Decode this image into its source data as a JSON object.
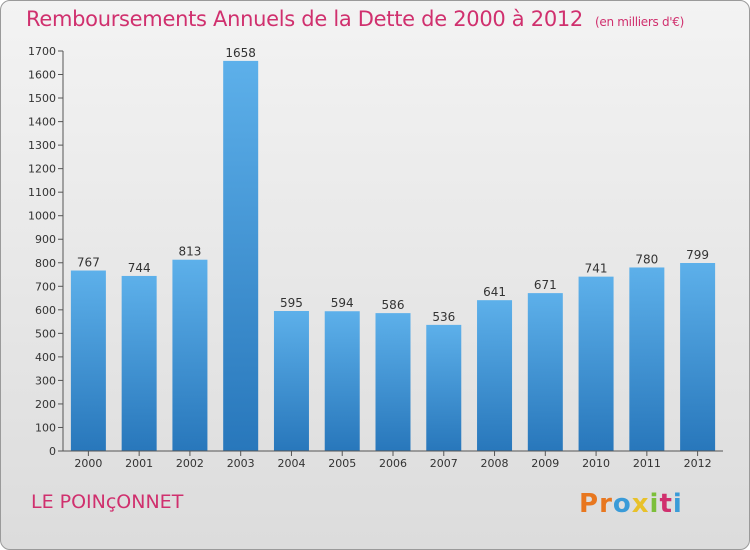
{
  "header": {
    "title": "Remboursements Annuels de la Dette de 2000 à 2012",
    "unit_note": "(en milliers d'€)"
  },
  "footer": {
    "town": "LE POINçONNET",
    "brand": "Proxiti",
    "brand_colors": [
      "#e8771f",
      "#e8771f",
      "#3a9bd8",
      "#e8c12a",
      "#7dbf3a",
      "#d0306e",
      "#3a9bd8"
    ]
  },
  "colors": {
    "title": "#d0306e",
    "bar_light": "#5aaee8",
    "bar_dark": "#2a7cc0",
    "axis": "#555555"
  },
  "chart_data": {
    "type": "bar",
    "title": "Remboursements Annuels de la Dette de 2000 à 2012",
    "categories": [
      "2000",
      "2001",
      "2002",
      "2003",
      "2004",
      "2005",
      "2006",
      "2007",
      "2008",
      "2009",
      "2010",
      "2011",
      "2012"
    ],
    "values": [
      767,
      744,
      813,
      1658,
      595,
      594,
      586,
      536,
      641,
      671,
      741,
      780,
      799
    ],
    "ylim": [
      0,
      1700
    ],
    "yticks": [
      0,
      100,
      200,
      300,
      400,
      500,
      600,
      700,
      800,
      900,
      1000,
      1100,
      1200,
      1300,
      1400,
      1500,
      1600,
      1700
    ],
    "xlabel": "",
    "ylabel": "",
    "grid": false,
    "data_labels": true
  }
}
